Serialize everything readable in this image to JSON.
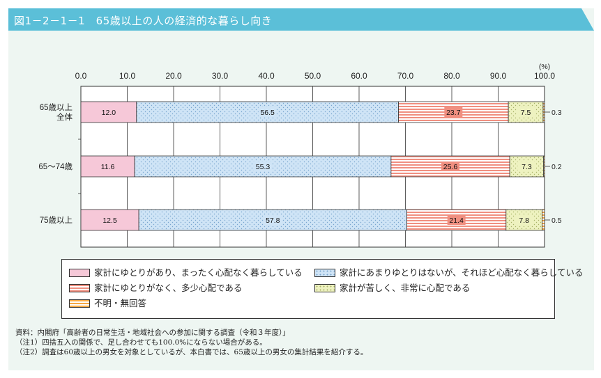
{
  "header": {
    "title": "図1－2－1－1　65歳以上の人の経済的な暮らし向き"
  },
  "chart_data": {
    "type": "bar",
    "orientation": "horizontal-stacked-100",
    "unit_label": "(%)",
    "xlim": [
      0,
      100
    ],
    "x_ticks": [
      "0.0",
      "10.0",
      "20.0",
      "30.0",
      "40.0",
      "50.0",
      "60.0",
      "70.0",
      "80.0",
      "90.0",
      "100.0"
    ],
    "categories": [
      "65歳以上\n全体",
      "65～74歳",
      "75歳以上"
    ],
    "series": [
      {
        "name": "家計にゆとりがあり、まったく心配なく暮らしている",
        "values": [
          12.0,
          11.6,
          12.5
        ],
        "labels": [
          "12.0",
          "11.6",
          "12.5"
        ],
        "color": "#f6c8d8",
        "pattern": "solid"
      },
      {
        "name": "家計にあまりゆとりはないが、それほど心配なく暮らしている",
        "values": [
          56.5,
          55.3,
          57.8
        ],
        "labels": [
          "56.5",
          "55.3",
          "57.8"
        ],
        "color": "#cfe4f6",
        "pattern": "dots"
      },
      {
        "name": "家計にゆとりがなく、多少心配である",
        "values": [
          23.7,
          25.6,
          21.4
        ],
        "labels": [
          "23.7",
          "25.6",
          "21.4"
        ],
        "color": "#f08f80",
        "pattern": "hstripes"
      },
      {
        "name": "家計が苦しく、非常に心配である",
        "values": [
          7.5,
          7.3,
          7.8
        ],
        "labels": [
          "7.5",
          "7.3",
          "7.8"
        ],
        "color": "#eef2c0",
        "pattern": "dots-green"
      },
      {
        "name": "不明・無回答",
        "values": [
          0.3,
          0.2,
          0.5
        ],
        "labels": [
          "0.3",
          "0.2",
          "0.5"
        ],
        "color": "#f6b35e",
        "pattern": "hstripes-orange"
      }
    ]
  },
  "notes": [
    "資料：内閣府「高齢者の日常生活・地域社会への参加に関する調査（令和３年度）」",
    "（注1）四捨五入の関係で、足し合わせても100.0%にならない場合がある。",
    "（注2）調査は60歳以上の男女を対象としているが、本白書では、65歳以上の男女の集計結果を紹介する。"
  ],
  "colors": {
    "header": "#5bbfd8",
    "panel": "#eef6f2"
  }
}
